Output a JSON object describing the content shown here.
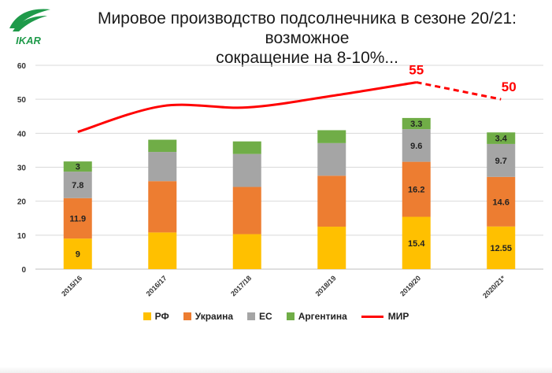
{
  "logo": {
    "text": "IKAR",
    "color": "#1f9a4a"
  },
  "title": {
    "line1": "Мировое производство подсолнечника в сезоне 20/21: возможное",
    "line2": "сокращение  на 8-10%..."
  },
  "chart_data": {
    "type": "bar",
    "stacked": true,
    "categories": [
      "2015/16",
      "2016/17",
      "2017/18",
      "2018/19",
      "2019/20",
      "2020/21*"
    ],
    "ylim": [
      0,
      60
    ],
    "yticks": [
      0,
      10,
      20,
      30,
      40,
      50,
      60
    ],
    "grid": true,
    "legend_position": "bottom",
    "series": [
      {
        "name": "РФ",
        "color": "#ffc000",
        "values": [
          9,
          10.8,
          10.3,
          12.5,
          15.4,
          12.55
        ],
        "labels": [
          "9",
          "",
          "",
          "",
          "15.4",
          "12.55"
        ]
      },
      {
        "name": "Украина",
        "color": "#ed7d31",
        "values": [
          11.9,
          15.1,
          13.9,
          15.0,
          16.2,
          14.6
        ],
        "labels": [
          "11.9",
          "",
          "",
          "",
          "16.2",
          "14.6"
        ]
      },
      {
        "name": "ЕС",
        "color": "#a5a5a5",
        "values": [
          7.8,
          8.6,
          9.7,
          9.6,
          9.6,
          9.7
        ],
        "labels": [
          "7.8",
          "",
          "",
          "",
          "9.6",
          "9.7"
        ]
      },
      {
        "name": "Аргентина",
        "color": "#70ad47",
        "values": [
          3,
          3.6,
          3.7,
          3.8,
          3.3,
          3.4
        ],
        "labels": [
          "3",
          "",
          "",
          "",
          "3.3",
          "3.4"
        ]
      }
    ],
    "line": {
      "name": "МИР",
      "color": "#ff0000",
      "values": [
        40.4,
        48.0,
        47.6,
        51.0,
        55,
        50
      ],
      "dashed_from_index": 4,
      "labels": [
        "",
        "",
        "",
        "",
        "55",
        "50"
      ]
    }
  }
}
